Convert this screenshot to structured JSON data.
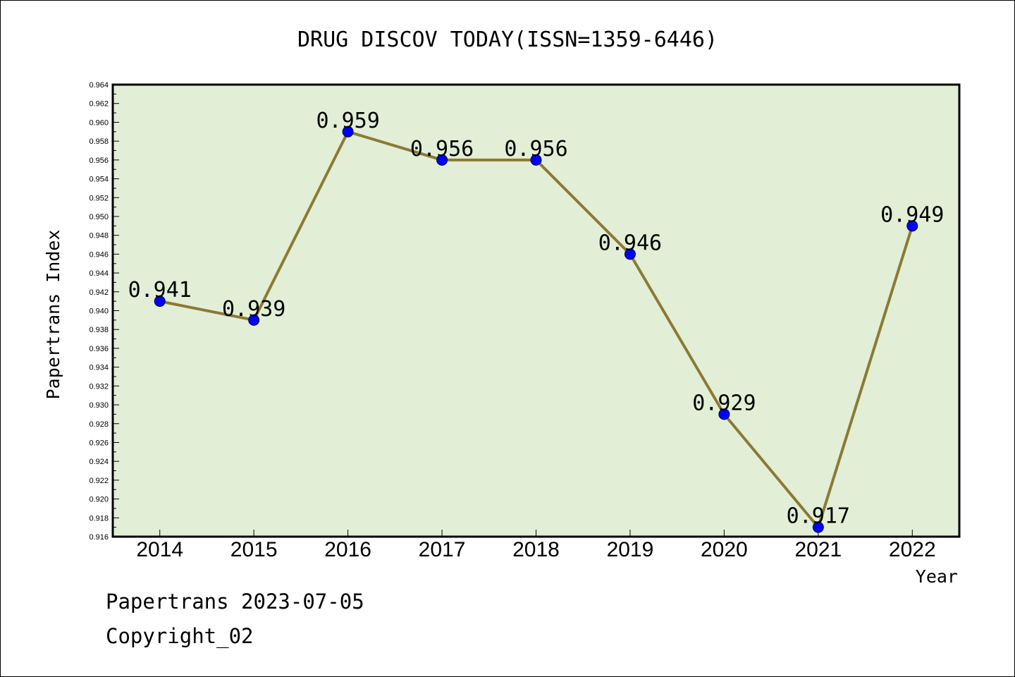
{
  "chart_data": {
    "type": "line",
    "title": "DRUG DISCOV TODAY(ISSN=1359-6446)",
    "xlabel": "Year",
    "ylabel": "Papertrans Index",
    "categories": [
      "2014",
      "2015",
      "2016",
      "2017",
      "2018",
      "2019",
      "2020",
      "2021",
      "2022"
    ],
    "series": [
      {
        "values": [
          0.941,
          0.939,
          0.959,
          0.956,
          0.956,
          0.946,
          0.929,
          0.917,
          0.949
        ],
        "data_labels": [
          "0.941",
          "0.939",
          "0.959",
          "0.956",
          "0.956",
          "0.946",
          "0.929",
          "0.917",
          "0.949"
        ]
      }
    ],
    "ylim": [
      0.916,
      0.964
    ],
    "yticks": [
      "0.916",
      "0.918",
      "0.920",
      "0.922",
      "0.924",
      "0.926",
      "0.928",
      "0.930",
      "0.932",
      "0.934",
      "0.936",
      "0.938",
      "0.940",
      "0.942",
      "0.944",
      "0.946",
      "0.948",
      "0.950",
      "0.952",
      "0.954",
      "0.956",
      "0.958",
      "0.960",
      "0.962",
      "0.964"
    ],
    "grid": false,
    "colors": {
      "plot_background": "#e2efd6",
      "line": "#8b7a35",
      "marker": "#0000ff"
    }
  },
  "footer": {
    "date_text": "Papertrans 2023-07-05",
    "copyright_text": "Copyright_02"
  }
}
